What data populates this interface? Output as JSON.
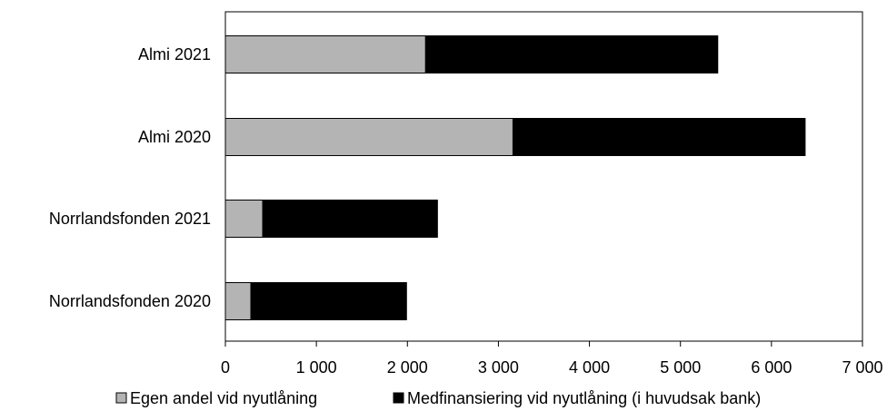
{
  "chart_data": {
    "type": "bar",
    "orientation": "horizontal",
    "stacked": true,
    "categories": [
      "Almi 2021",
      "Almi 2020",
      "Norrlandsfonden 2021",
      "Norrlandsfonden 2020"
    ],
    "series": [
      {
        "name": "Egen andel vid nyutlåning",
        "color": "#b4b4b4",
        "values": [
          2200,
          3160,
          410,
          280
        ]
      },
      {
        "name": "Medfinansiering vid nyutlåning (i huvudsak bank)",
        "color": "#000000",
        "values": [
          3210,
          3210,
          1920,
          1710
        ]
      }
    ],
    "xlim": [
      0,
      7000
    ],
    "xticks": [
      0,
      1000,
      2000,
      3000,
      4000,
      5000,
      6000,
      7000
    ],
    "xtick_labels": [
      "0",
      "1 000",
      "2 000",
      "3 000",
      "4 000",
      "5 000",
      "6 000",
      "7 000"
    ],
    "grid": false,
    "legend_position": "bottom"
  }
}
